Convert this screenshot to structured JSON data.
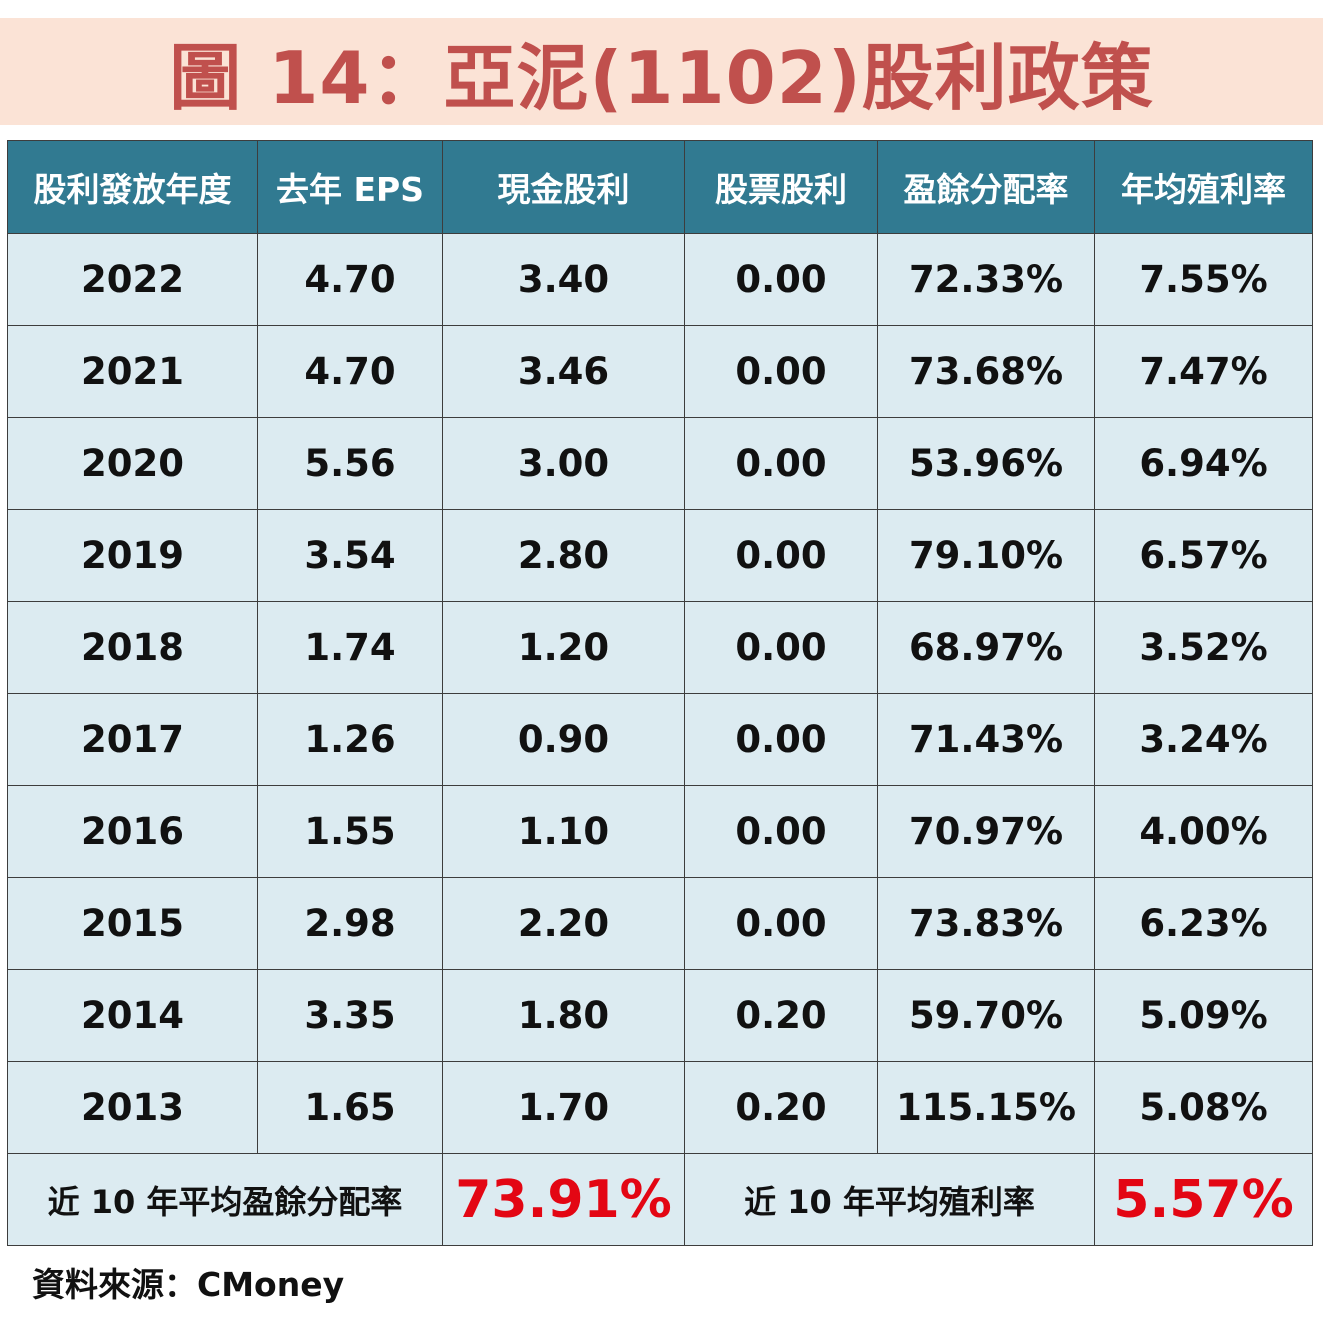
{
  "title": "圖 14：亞泥(1102)股利政策",
  "table": {
    "headers": [
      "股利發放年度",
      "去年 EPS",
      "現金股利",
      "股票股利",
      "盈餘分配率",
      "年均殖利率"
    ],
    "rows": [
      [
        "2022",
        "4.70",
        "3.40",
        "0.00",
        "72.33%",
        "7.55%"
      ],
      [
        "2021",
        "4.70",
        "3.46",
        "0.00",
        "73.68%",
        "7.47%"
      ],
      [
        "2020",
        "5.56",
        "3.00",
        "0.00",
        "53.96%",
        "6.94%"
      ],
      [
        "2019",
        "3.54",
        "2.80",
        "0.00",
        "79.10%",
        "6.57%"
      ],
      [
        "2018",
        "1.74",
        "1.20",
        "0.00",
        "68.97%",
        "3.52%"
      ],
      [
        "2017",
        "1.26",
        "0.90",
        "0.00",
        "71.43%",
        "3.24%"
      ],
      [
        "2016",
        "1.55",
        "1.10",
        "0.00",
        "70.97%",
        "4.00%"
      ],
      [
        "2015",
        "2.98",
        "2.20",
        "0.00",
        "73.83%",
        "6.23%"
      ],
      [
        "2014",
        "3.35",
        "1.80",
        "0.20",
        "59.70%",
        "5.09%"
      ],
      [
        "2013",
        "1.65",
        "1.70",
        "0.20",
        "115.15%",
        "5.08%"
      ]
    ]
  },
  "summary": {
    "payout_label": "近 10 年平均盈餘分配率",
    "payout_value": "73.91%",
    "yield_label": "近 10 年平均殖利率",
    "yield_value": "5.57%"
  },
  "source": "資料來源：CMoney",
  "colors": {
    "title": "#c0504d",
    "title_bg": "#fbe3d6",
    "header_bg": "#317a91",
    "cell_bg": "#dcebf1",
    "highlight": "#e30613"
  }
}
